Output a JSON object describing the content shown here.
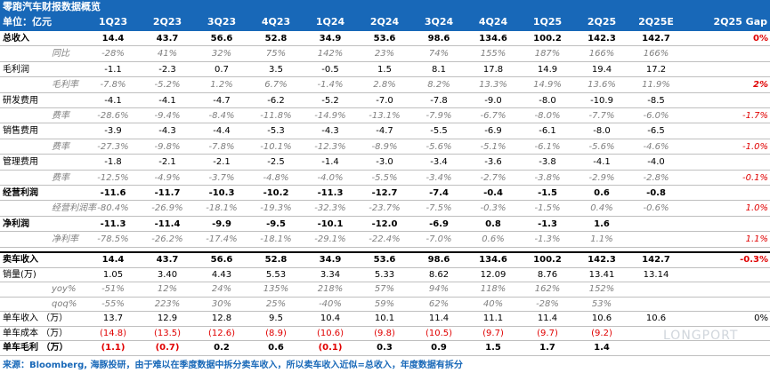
{
  "title": "零跑汽车财报数据概览",
  "header": {
    "unit": "单位：亿元",
    "columns": [
      "1Q23",
      "2Q23",
      "3Q23",
      "4Q23",
      "1Q24",
      "2Q24",
      "3Q24",
      "4Q24",
      "1Q25",
      "2Q25",
      "2Q25E"
    ],
    "gap": "2Q25 Gap"
  },
  "rows_top": [
    {
      "label": "总收入",
      "type": "bold",
      "values": [
        "14.4",
        "43.7",
        "56.6",
        "52.8",
        "34.9",
        "53.6",
        "98.6",
        "134.6",
        "100.2",
        "142.3",
        "142.7"
      ],
      "gap": "0%",
      "gap_red": true
    },
    {
      "label": "同比",
      "type": "sub",
      "values": [
        "-28%",
        "41%",
        "32%",
        "75%",
        "142%",
        "23%",
        "74%",
        "155%",
        "187%",
        "166%",
        "166%"
      ],
      "gap": ""
    },
    {
      "label": "毛利润",
      "type": "normal",
      "values": [
        "-1.1",
        "-2.3",
        "0.7",
        "3.5",
        "-0.5",
        "1.5",
        "8.1",
        "17.8",
        "14.9",
        "19.4",
        "17.2"
      ],
      "gap": ""
    },
    {
      "label": "毛利率",
      "type": "sub",
      "values": [
        "-7.8%",
        "-5.2%",
        "1.2%",
        "6.7%",
        "-1.4%",
        "2.8%",
        "8.2%",
        "13.3%",
        "14.9%",
        "13.6%",
        "11.9%"
      ],
      "gap": "2%",
      "gap_red": true,
      "gap_bold": true
    },
    {
      "label": "研发费用",
      "type": "normal",
      "values": [
        "-4.1",
        "-4.1",
        "-4.7",
        "-6.2",
        "-5.2",
        "-7.0",
        "-7.8",
        "-9.0",
        "-8.0",
        "-10.9",
        "-8.5"
      ],
      "gap": ""
    },
    {
      "label": "费率",
      "type": "sub",
      "values": [
        "-28.6%",
        "-9.4%",
        "-8.4%",
        "-11.8%",
        "-14.9%",
        "-13.1%",
        "-7.9%",
        "-6.7%",
        "-8.0%",
        "-7.7%",
        "-6.0%"
      ],
      "gap": "-1.7%",
      "gap_red": true
    },
    {
      "label": "销售费用",
      "type": "normal",
      "values": [
        "-3.9",
        "-4.3",
        "-4.4",
        "-5.3",
        "-4.3",
        "-4.7",
        "-5.5",
        "-6.9",
        "-6.1",
        "-8.0",
        "-6.5"
      ],
      "gap": ""
    },
    {
      "label": "费率",
      "type": "sub",
      "values": [
        "-27.3%",
        "-9.8%",
        "-7.8%",
        "-10.1%",
        "-12.3%",
        "-8.9%",
        "-5.6%",
        "-5.1%",
        "-6.1%",
        "-5.6%",
        "-4.6%"
      ],
      "gap": "-1.0%",
      "gap_red": true
    },
    {
      "label": "管理费用",
      "type": "normal",
      "values": [
        "-1.8",
        "-2.1",
        "-2.1",
        "-2.5",
        "-1.4",
        "-3.0",
        "-3.4",
        "-3.6",
        "-3.8",
        "-4.1",
        "-4.0"
      ],
      "gap": ""
    },
    {
      "label": "费率",
      "type": "sub",
      "values": [
        "-12.5%",
        "-4.9%",
        "-3.7%",
        "-4.8%",
        "-4.0%",
        "-5.5%",
        "-3.4%",
        "-2.7%",
        "-3.8%",
        "-2.9%",
        "-2.8%"
      ],
      "gap": "-0.1%",
      "gap_red": true
    },
    {
      "label": "经营利润",
      "type": "bold",
      "values": [
        "-11.6",
        "-11.7",
        "-10.3",
        "-10.2",
        "-11.3",
        "-12.7",
        "-7.4",
        "-0.4",
        "-1.5",
        "0.6",
        "-0.8"
      ],
      "gap": ""
    },
    {
      "label": "经营利润率",
      "type": "sub",
      "values": [
        "-80.4%",
        "-26.9%",
        "-18.1%",
        "-19.3%",
        "-32.3%",
        "-23.7%",
        "-7.5%",
        "-0.3%",
        "-1.5%",
        "0.4%",
        "-0.6%"
      ],
      "gap": "1.0%",
      "gap_red": true
    },
    {
      "label": "净利润",
      "type": "bold",
      "values": [
        "-11.3",
        "-11.4",
        "-9.9",
        "-9.5",
        "-10.1",
        "-12.0",
        "-6.9",
        "0.8",
        "-1.3",
        "1.6",
        ""
      ],
      "gap": ""
    },
    {
      "label": "净利率",
      "type": "sub",
      "values": [
        "-78.5%",
        "-26.2%",
        "-17.4%",
        "-18.1%",
        "-29.1%",
        "-22.4%",
        "-7.0%",
        "0.6%",
        "-1.3%",
        "1.1%",
        ""
      ],
      "gap": "1.1%",
      "gap_red": true
    }
  ],
  "rows_bottom": [
    {
      "label": "卖车收入",
      "type": "bold",
      "values": [
        "14.4",
        "43.7",
        "56.6",
        "52.8",
        "34.9",
        "53.6",
        "98.6",
        "134.6",
        "100.2",
        "142.3",
        "142.7"
      ],
      "gap": "-0.3%",
      "gap_red": true
    },
    {
      "label": "销量(万)",
      "type": "normal",
      "values": [
        "1.05",
        "3.40",
        "4.43",
        "5.53",
        "3.34",
        "5.33",
        "8.62",
        "12.09",
        "8.76",
        "13.41",
        "13.14"
      ],
      "gap": ""
    },
    {
      "label": "yoy%",
      "type": "sub",
      "values": [
        "-51%",
        "12%",
        "24%",
        "135%",
        "218%",
        "57%",
        "94%",
        "118%",
        "162%",
        "152%",
        ""
      ],
      "gap": ""
    },
    {
      "label": "qoq%",
      "type": "sub",
      "values": [
        "-55%",
        "223%",
        "30%",
        "25%",
        "-40%",
        "59%",
        "62%",
        "40%",
        "-28%",
        "53%",
        ""
      ],
      "gap": ""
    },
    {
      "label": "单车收入 （万）",
      "type": "normal",
      "values": [
        "13.7",
        "12.9",
        "12.8",
        "9.5",
        "10.4",
        "10.1",
        "11.4",
        "11.1",
        "11.4",
        "10.6",
        "10.6"
      ],
      "gap": "0%",
      "gap_red": false
    },
    {
      "label": "单车成本 （万）",
      "type": "normal",
      "red_values": true,
      "values": [
        "(14.8)",
        "(13.5)",
        "(12.6)",
        "(8.9)",
        "(10.6)",
        "(9.8)",
        "(10.5)",
        "(9.7)",
        "(9.7)",
        "(9.2)",
        ""
      ],
      "gap": ""
    },
    {
      "label": "单车毛利 （万）",
      "type": "bold",
      "values": [
        "(1.1)",
        "(0.7)",
        "0.2",
        "0.6",
        "(0.1)",
        "0.3",
        "0.9",
        "1.5",
        "1.7",
        "1.4",
        ""
      ],
      "red_negatives": true,
      "gap": ""
    }
  ],
  "footer": "来源：Bloomberg, 海豚投研，由于难以在季度数据中拆分卖车收入，所以卖车收入近似=总收入，年度数据有拆分",
  "watermark": "LONGPORT"
}
